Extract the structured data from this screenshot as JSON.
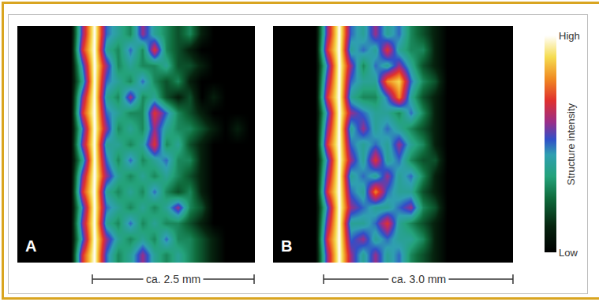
{
  "chart_data": {
    "type": "heatmap",
    "tick_labels": false,
    "color_bar": {
      "title": "Structure intensity",
      "range": [
        0,
        10
      ],
      "ticks": [
        {
          "value": 0,
          "label": "Low"
        },
        {
          "value": 10,
          "label": "High"
        }
      ]
    },
    "panels": [
      {
        "label": "A",
        "scale_label": "ca. 2.5 mm",
        "z": [
          [
            0,
            0,
            0,
            0,
            0,
            6,
            10,
            5,
            4,
            3,
            6,
            4,
            3,
            2,
            3,
            1,
            0,
            0,
            0,
            0
          ],
          [
            0,
            0,
            0,
            0,
            0,
            7,
            10,
            4,
            3,
            5,
            3,
            7,
            3,
            2,
            1,
            0,
            0,
            0,
            0,
            0
          ],
          [
            0,
            0,
            0,
            0,
            0,
            5,
            10,
            6,
            3,
            4,
            3,
            3,
            4,
            2,
            2,
            1,
            0,
            0,
            0,
            0
          ],
          [
            0,
            0,
            0,
            0,
            0,
            4,
            10,
            5,
            4,
            3,
            5,
            3,
            2,
            3,
            1,
            0,
            0,
            0,
            0,
            0
          ],
          [
            0,
            0,
            0,
            0,
            0,
            6,
            10,
            4,
            3,
            6,
            3,
            4,
            2,
            1,
            2,
            0,
            1,
            0,
            0,
            0
          ],
          [
            0,
            0,
            0,
            0,
            0,
            7,
            10,
            5,
            4,
            3,
            3,
            7,
            5,
            3,
            2,
            1,
            0,
            0,
            0,
            0
          ],
          [
            0,
            0,
            0,
            0,
            0,
            5,
            10,
            6,
            3,
            4,
            3,
            6,
            4,
            3,
            3,
            2,
            1,
            0,
            1,
            0
          ],
          [
            0,
            0,
            0,
            0,
            0,
            6,
            10,
            4,
            4,
            3,
            4,
            7,
            3,
            4,
            2,
            1,
            0,
            0,
            0,
            0
          ],
          [
            0,
            0,
            0,
            0,
            0,
            4,
            10,
            5,
            3,
            5,
            3,
            4,
            5,
            3,
            3,
            1,
            0,
            0,
            0,
            0
          ],
          [
            0,
            0,
            0,
            0,
            0,
            6,
            10,
            6,
            4,
            3,
            4,
            3,
            4,
            3,
            2,
            1,
            0,
            0,
            0,
            0
          ],
          [
            0,
            0,
            0,
            0,
            0,
            7,
            10,
            4,
            3,
            4,
            3,
            5,
            3,
            2,
            3,
            1,
            0,
            0,
            0,
            0
          ],
          [
            0,
            0,
            0,
            0,
            0,
            5,
            10,
            5,
            4,
            3,
            4,
            3,
            4,
            6,
            3,
            2,
            0,
            0,
            0,
            0
          ],
          [
            0,
            0,
            0,
            0,
            0,
            6,
            10,
            4,
            3,
            5,
            3,
            4,
            3,
            3,
            2,
            1,
            0,
            0,
            0,
            0
          ],
          [
            0,
            0,
            0,
            0,
            0,
            5,
            10,
            6,
            4,
            3,
            4,
            3,
            5,
            3,
            3,
            2,
            1,
            0,
            0,
            0
          ],
          [
            0,
            0,
            0,
            0,
            0,
            7,
            10,
            5,
            3,
            4,
            6,
            4,
            3,
            4,
            3,
            2,
            1,
            0,
            0,
            0
          ]
        ]
      },
      {
        "label": "B",
        "scale_label": "ca. 3.0 mm",
        "z": [
          [
            0,
            0,
            0,
            0,
            6,
            10,
            5,
            4,
            6,
            4,
            5,
            3,
            2,
            1,
            0,
            0,
            0,
            0,
            0,
            0
          ],
          [
            0,
            0,
            0,
            0,
            7,
            10,
            4,
            5,
            4,
            7,
            4,
            3,
            3,
            1,
            0,
            0,
            0,
            0,
            0,
            0
          ],
          [
            0,
            0,
            0,
            0,
            5,
            10,
            6,
            3,
            5,
            4,
            6,
            4,
            2,
            1,
            0,
            0,
            0,
            0,
            0,
            0
          ],
          [
            0,
            0,
            0,
            0,
            6,
            10,
            5,
            4,
            4,
            8,
            9,
            5,
            3,
            2,
            0,
            0,
            0,
            0,
            0,
            0
          ],
          [
            0,
            0,
            0,
            0,
            7,
            10,
            4,
            3,
            3,
            5,
            8,
            4,
            2,
            1,
            0,
            0,
            0,
            0,
            0,
            0
          ],
          [
            0,
            0,
            0,
            0,
            5,
            10,
            6,
            5,
            4,
            4,
            3,
            5,
            3,
            1,
            0,
            0,
            0,
            0,
            0,
            0
          ],
          [
            0,
            0,
            0,
            0,
            6,
            10,
            4,
            6,
            4,
            5,
            4,
            3,
            2,
            1,
            0,
            0,
            0,
            0,
            0,
            0
          ],
          [
            0,
            0,
            0,
            0,
            7,
            10,
            5,
            4,
            5,
            4,
            6,
            4,
            3,
            1,
            0,
            0,
            0,
            0,
            0,
            0
          ],
          [
            0,
            0,
            0,
            0,
            5,
            10,
            6,
            4,
            7,
            4,
            5,
            3,
            2,
            2,
            0,
            0,
            0,
            0,
            0,
            0
          ],
          [
            0,
            0,
            0,
            0,
            6,
            10,
            4,
            5,
            4,
            6,
            4,
            5,
            3,
            1,
            0,
            0,
            0,
            0,
            0,
            0
          ],
          [
            0,
            0,
            0,
            0,
            7,
            10,
            5,
            4,
            8,
            5,
            4,
            4,
            2,
            1,
            0,
            0,
            0,
            0,
            0,
            0
          ],
          [
            0,
            0,
            0,
            0,
            5,
            10,
            6,
            5,
            4,
            4,
            5,
            6,
            3,
            2,
            0,
            0,
            0,
            0,
            0,
            0
          ],
          [
            0,
            0,
            0,
            0,
            6,
            10,
            4,
            4,
            5,
            7,
            4,
            3,
            2,
            1,
            0,
            0,
            0,
            0,
            0,
            0
          ],
          [
            0,
            0,
            0,
            0,
            7,
            10,
            5,
            6,
            4,
            5,
            4,
            4,
            3,
            1,
            0,
            0,
            0,
            0,
            0,
            0
          ],
          [
            0,
            0,
            0,
            0,
            6,
            10,
            6,
            4,
            6,
            4,
            5,
            3,
            2,
            1,
            0,
            0,
            0,
            0,
            0,
            0
          ]
        ]
      }
    ]
  }
}
